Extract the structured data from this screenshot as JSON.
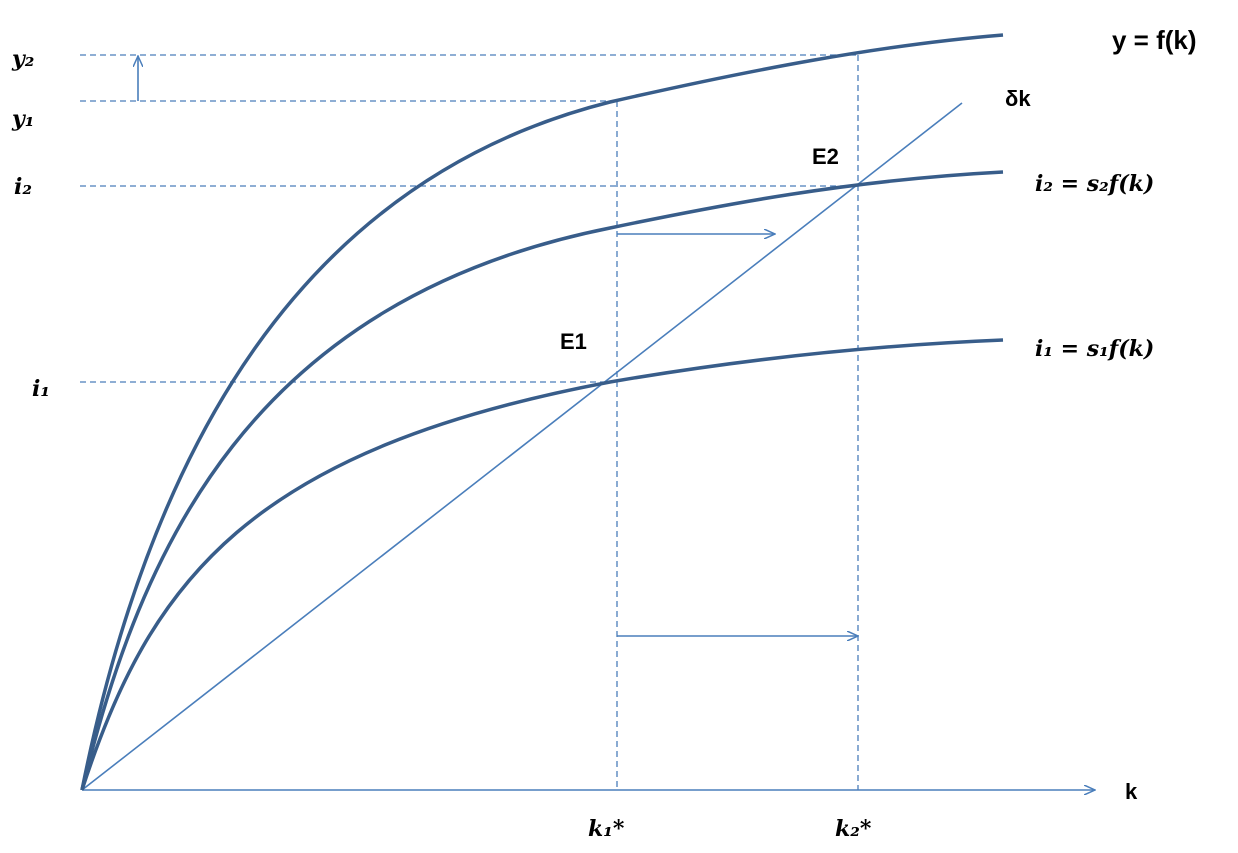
{
  "labels": {
    "y2": "y₂",
    "y1": "y₁",
    "i2": "i₂",
    "i1": "i₁",
    "production": "y = f(k)",
    "depreciation": "δk",
    "e2": "E2",
    "e1": "E1",
    "investment2": "i₂ = s₂f(k)",
    "investment1": "i₁ = s₁f(k)",
    "k_axis": "k",
    "k1": "k₁*",
    "k2": "k₂*"
  }
}
